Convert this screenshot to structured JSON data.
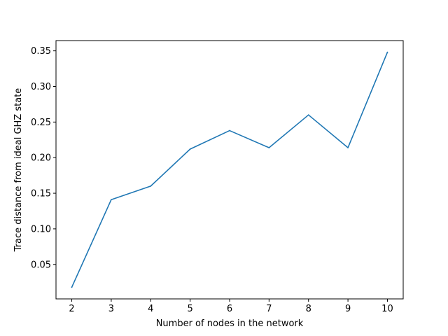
{
  "chart_data": {
    "type": "line",
    "title": "",
    "xlabel": "Number of nodes in the network",
    "ylabel": "Trace distance from ideal GHZ state",
    "x": [
      2,
      3,
      4,
      5,
      6,
      7,
      8,
      9,
      10
    ],
    "series": [
      {
        "values": [
          0.018,
          0.141,
          0.16,
          0.212,
          0.238,
          0.214,
          0.26,
          0.214,
          0.348
        ]
      }
    ],
    "xlim": [
      1.6,
      10.4
    ],
    "ylim": [
      0.0016,
      0.3644
    ],
    "xticks": [
      2,
      3,
      4,
      5,
      6,
      7,
      8,
      9,
      10
    ],
    "xtick_labels": [
      "2",
      "3",
      "4",
      "5",
      "6",
      "7",
      "8",
      "9",
      "10"
    ],
    "yticks": [
      0.05,
      0.1,
      0.15,
      0.2,
      0.25,
      0.3,
      0.35
    ],
    "ytick_labels": [
      "0.05",
      "0.10",
      "0.15",
      "0.20",
      "0.25",
      "0.30",
      "0.35"
    ],
    "grid": false,
    "legend": "none",
    "line_color": "#1f77b4"
  }
}
